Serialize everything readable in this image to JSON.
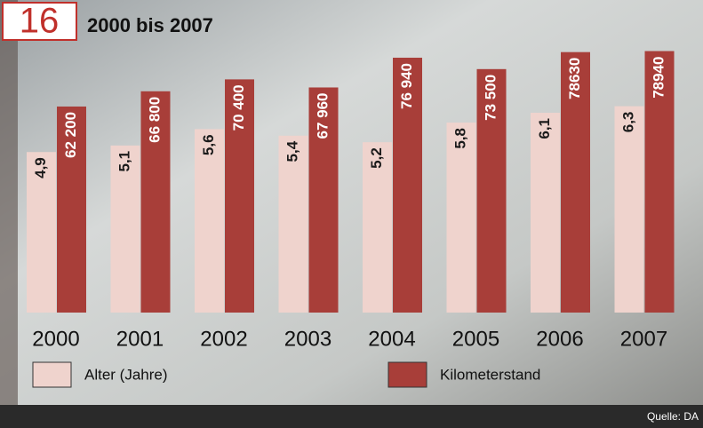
{
  "figure_number": "16",
  "source": "Quelle: DA",
  "chart_data": {
    "type": "bar",
    "title": "2000 bis 2007",
    "categories": [
      "2000",
      "2001",
      "2002",
      "2003",
      "2004",
      "2005",
      "2006",
      "2007"
    ],
    "series": [
      {
        "name": "Alter (Jahre)",
        "color": "#efd3cd",
        "label_color": "#1a1a1a",
        "values": [
          4.9,
          5.1,
          5.6,
          5.4,
          5.2,
          5.8,
          6.1,
          6.3
        ],
        "value_labels": [
          "4,9",
          "5,1",
          "5,6",
          "5,4",
          "5,2",
          "5,8",
          "6,1",
          "6,3"
        ]
      },
      {
        "name": "Kilometerstand",
        "color": "#a83e39",
        "label_color": "#ffffff",
        "axis": "y2",
        "values": [
          62200,
          66800,
          70400,
          67960,
          76940,
          73500,
          78630,
          78940
        ],
        "value_labels": [
          "62 200",
          "66 800",
          "70 400",
          "67 960",
          "76 940",
          "73 500",
          "78630",
          "78940"
        ]
      }
    ],
    "ylim": [
      0,
      9
    ],
    "y2lim": [
      0,
      89000
    ]
  }
}
